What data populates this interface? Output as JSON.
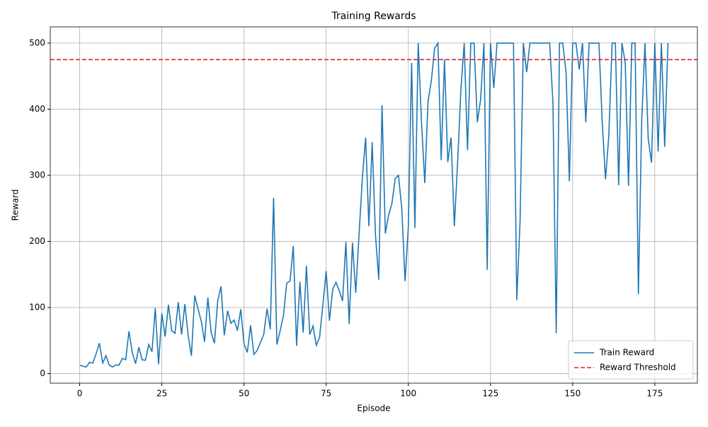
{
  "chart_data": {
    "type": "line",
    "title": "Training Rewards",
    "x_label": "Episode",
    "y_label": "Reward",
    "x": [
      0,
      1,
      2,
      3,
      4,
      5,
      6,
      7,
      8,
      9,
      10,
      11,
      12,
      13,
      14,
      15,
      16,
      17,
      18,
      19,
      20,
      21,
      22,
      23,
      24,
      25,
      26,
      27,
      28,
      29,
      30,
      31,
      32,
      33,
      34,
      35,
      36,
      37,
      38,
      39,
      40,
      41,
      42,
      43,
      44,
      45,
      46,
      47,
      48,
      49,
      50,
      51,
      52,
      53,
      54,
      55,
      56,
      57,
      58,
      59,
      60,
      61,
      62,
      63,
      64,
      65,
      66,
      67,
      68,
      69,
      70,
      71,
      72,
      73,
      74,
      75,
      76,
      77,
      78,
      79,
      80,
      81,
      82,
      83,
      84,
      85,
      86,
      87,
      88,
      89,
      90,
      91,
      92,
      93,
      94,
      95,
      96,
      97,
      98,
      99,
      100,
      101,
      102,
      103,
      104,
      105,
      106,
      107,
      108,
      109,
      110,
      111,
      112,
      113,
      114,
      115,
      116,
      117,
      118,
      119,
      120,
      121,
      122,
      123,
      124,
      125,
      126,
      127,
      128,
      129,
      130,
      131,
      132,
      133,
      134,
      135,
      136,
      137,
      138,
      139,
      140,
      141,
      142,
      143,
      144,
      145,
      146,
      147,
      148,
      149,
      150,
      151,
      152,
      153,
      154,
      155,
      156,
      157,
      158,
      159,
      160,
      161,
      162,
      163,
      164,
      165,
      166,
      167,
      168,
      169,
      170,
      171,
      172,
      173,
      174,
      175,
      176,
      177,
      178,
      179
    ],
    "series": [
      {
        "name": "Train Reward",
        "color": "#1f77b4",
        "values": [
          13,
          11,
          10,
          17,
          16,
          30,
          46,
          16,
          27,
          13,
          10,
          13,
          13,
          23,
          21,
          64,
          32,
          15,
          40,
          21,
          20,
          44,
          33,
          99,
          14,
          91,
          56,
          104,
          65,
          61,
          108,
          59,
          105,
          58,
          27,
          118,
          98,
          79,
          48,
          115,
          62,
          46,
          110,
          132,
          58,
          95,
          76,
          81,
          65,
          97,
          45,
          32,
          73,
          29,
          35,
          47,
          59,
          98,
          67,
          266,
          44,
          65,
          88,
          137,
          140,
          193,
          42,
          139,
          62,
          163,
          59,
          72,
          43,
          55,
          104,
          155,
          80,
          128,
          138,
          125,
          110,
          199,
          75,
          198,
          122,
          210,
          295,
          357,
          223,
          350,
          210,
          142,
          406,
          212,
          240,
          257,
          295,
          300,
          250,
          140,
          222,
          470,
          220,
          500,
          382,
          288,
          412,
          443,
          492,
          500,
          323,
          475,
          320,
          357,
          223,
          320,
          430,
          500,
          338,
          500,
          500,
          380,
          415,
          500,
          157,
          500,
          432,
          500,
          500,
          500,
          500,
          500,
          500,
          111,
          230,
          500,
          456,
          500,
          500,
          500,
          500,
          500,
          500,
          500,
          410,
          61,
          500,
          500,
          455,
          291,
          500,
          500,
          460,
          500,
          380,
          500,
          500,
          500,
          500,
          380,
          294,
          360,
          500,
          500,
          285,
          500,
          470,
          284,
          500,
          500,
          120,
          380,
          500,
          355,
          319,
          500,
          336,
          500,
          343,
          500
        ]
      }
    ],
    "threshold": {
      "name": "Reward Threshold",
      "value": 475,
      "color": "#d62728",
      "style": "dashed"
    },
    "xlim": [
      -8.95,
      187.95
    ],
    "ylim": [
      -14.5,
      524.5
    ],
    "xticks": [
      0,
      25,
      50,
      75,
      100,
      125,
      150,
      175
    ],
    "yticks": [
      0,
      100,
      200,
      300,
      400,
      500
    ],
    "grid": true,
    "legend": "lower right"
  }
}
